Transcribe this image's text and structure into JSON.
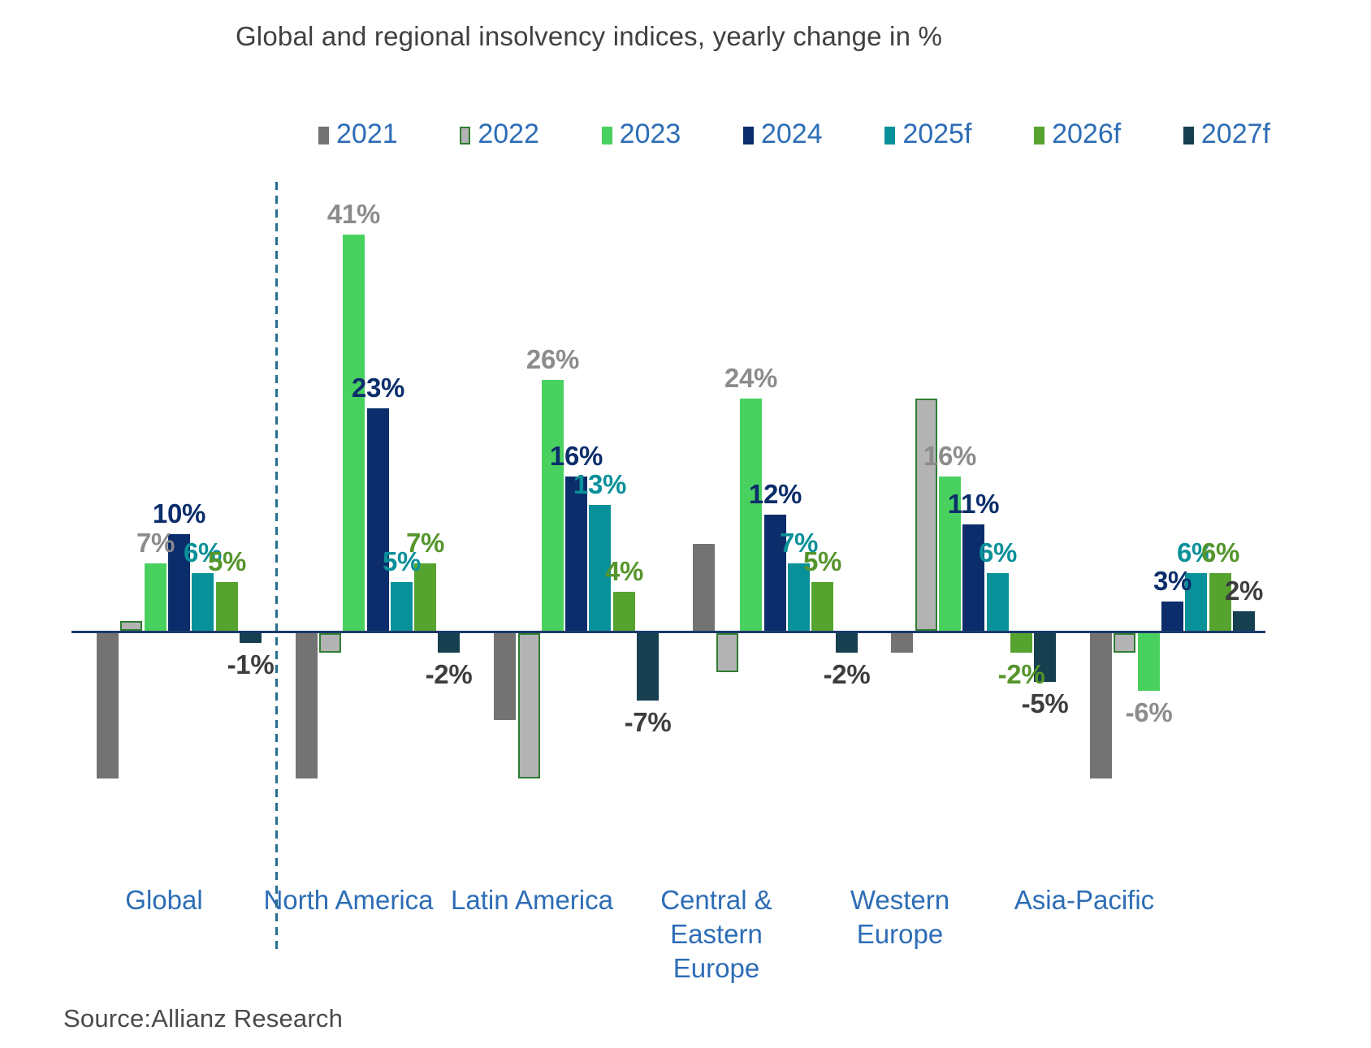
{
  "title": "Global and regional insolvency indices, yearly change in %",
  "source": "Source:Allianz Research",
  "colors": {
    "axis_line": "#1b3a6b",
    "separator_dashed": "#256e8f",
    "category_label": "#2d6db6",
    "legend_label": "#2d6db6",
    "title_text": "#404040",
    "source_text": "#4a4a4a"
  },
  "chart_data": {
    "type": "bar",
    "title": "Global and regional insolvency indices, yearly change in %",
    "unit": "%",
    "xlabel": "",
    "ylabel": "",
    "ylim": [
      -16,
      45
    ],
    "grid": false,
    "legend_position": "top",
    "separator_after_category_index": 0,
    "categories": [
      "Global",
      "North America",
      "Latin America",
      "Central &\nEastern\nEurope",
      "Western\nEurope",
      "Asia-Pacific"
    ],
    "series": [
      {
        "name": "2021",
        "color": "#737373",
        "labeled": false,
        "values": [
          -15,
          -15,
          -9,
          9,
          -2,
          -15
        ]
      },
      {
        "name": "2022",
        "color": "#b3b3b3",
        "border_color": "#2e7d32",
        "labeled": false,
        "values": [
          1,
          -2,
          -15,
          -4,
          24,
          -2
        ]
      },
      {
        "name": "2023",
        "color": "#49d15f",
        "label_color": "#8c8c8c",
        "labeled": true,
        "values": [
          7,
          41,
          26,
          24,
          16,
          -6
        ]
      },
      {
        "name": "2024",
        "color": "#0b2d6b",
        "label_color": "#0b2d6b",
        "labeled": true,
        "values": [
          10,
          23,
          16,
          12,
          11,
          3
        ]
      },
      {
        "name": "2025f",
        "color": "#089199",
        "label_color": "#0a9099",
        "labeled": true,
        "values": [
          6,
          5,
          13,
          7,
          6,
          6
        ]
      },
      {
        "name": "2026f",
        "color": "#56a42f",
        "label_color": "#55952c",
        "labeled": true,
        "values": [
          5,
          7,
          4,
          5,
          -2,
          6
        ]
      },
      {
        "name": "2027f",
        "color": "#163f50",
        "label_color": "#3d3d3d",
        "labeled": true,
        "values": [
          -1,
          -2,
          -7,
          -2,
          -5,
          2
        ]
      }
    ]
  }
}
